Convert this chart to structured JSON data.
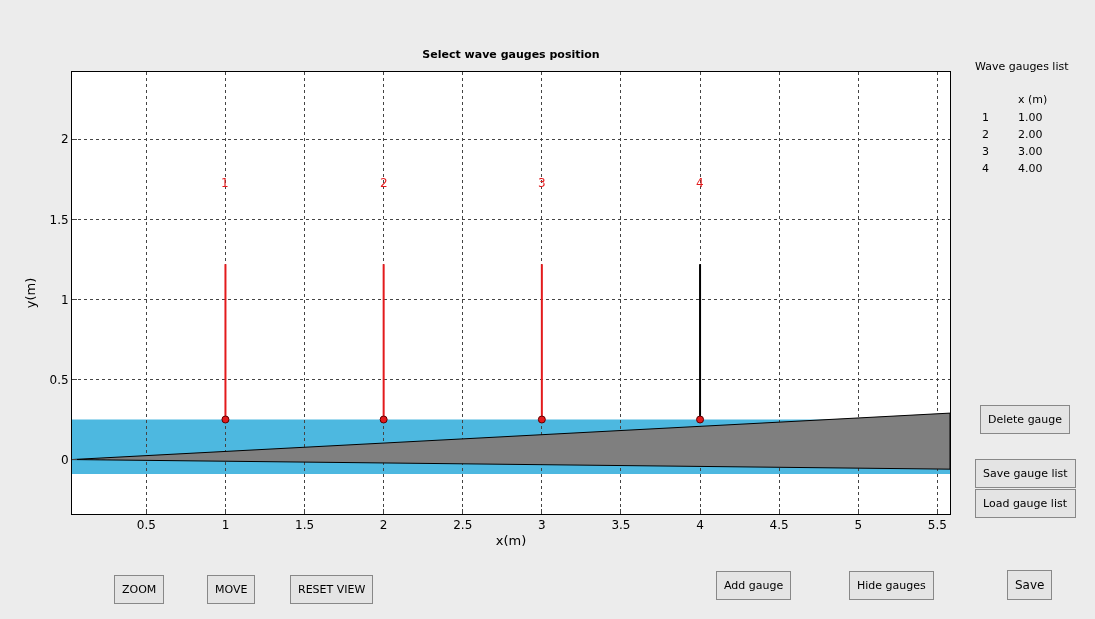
{
  "chart_data": {
    "type": "scatter",
    "title": "Select wave gauges position",
    "xlabel": "x(m)",
    "ylabel": "y(m)",
    "xlim": [
      0.03,
      5.58
    ],
    "ylim": [
      -0.34,
      2.42
    ],
    "xticks": [
      0.5,
      1,
      1.5,
      2,
      2.5,
      3,
      3.5,
      4,
      4.5,
      5,
      5.5
    ],
    "yticks": [
      0,
      0.5,
      1,
      1.5,
      2
    ],
    "grid": true,
    "bands": [
      {
        "axis": "y",
        "from": -0.09,
        "to": 0.25,
        "color": "#4db8e0"
      }
    ],
    "series": [
      {
        "type": "area",
        "color": "#7f7f7f",
        "x": [
          0.03,
          5.58,
          5.58,
          0.03
        ],
        "values": [
          0,
          0.29,
          -0.06,
          0
        ]
      },
      {
        "type": "line",
        "color": "#e31a1c",
        "x": [
          1,
          1
        ],
        "values": [
          0.25,
          1.22
        ]
      },
      {
        "type": "line",
        "color": "#e31a1c",
        "x": [
          2,
          2
        ],
        "values": [
          0.25,
          1.22
        ]
      },
      {
        "type": "line",
        "color": "#e31a1c",
        "x": [
          3,
          3
        ],
        "values": [
          0.25,
          1.22
        ]
      },
      {
        "type": "line",
        "color": "#000000",
        "x": [
          4,
          4
        ],
        "values": [
          0.25,
          1.22
        ]
      },
      {
        "color": "#e31a1c",
        "marker": "circle",
        "x": [
          1,
          2,
          3,
          4
        ],
        "values": [
          0.25,
          0.25,
          0.25,
          0.25
        ]
      }
    ],
    "annotations": [
      "1",
      "2",
      "3",
      "4",
      "Wave gauges list",
      "x (m)",
      "1",
      "1.00",
      "2",
      "2.00",
      "3",
      "3.00",
      "4",
      "4.00",
      "Delete gauge",
      "Save gauge list",
      "Load gauge list",
      "ZOOM",
      "MOVE",
      "RESET VIEW",
      "Add gauge",
      "Hide gauges",
      "Save"
    ]
  }
}
